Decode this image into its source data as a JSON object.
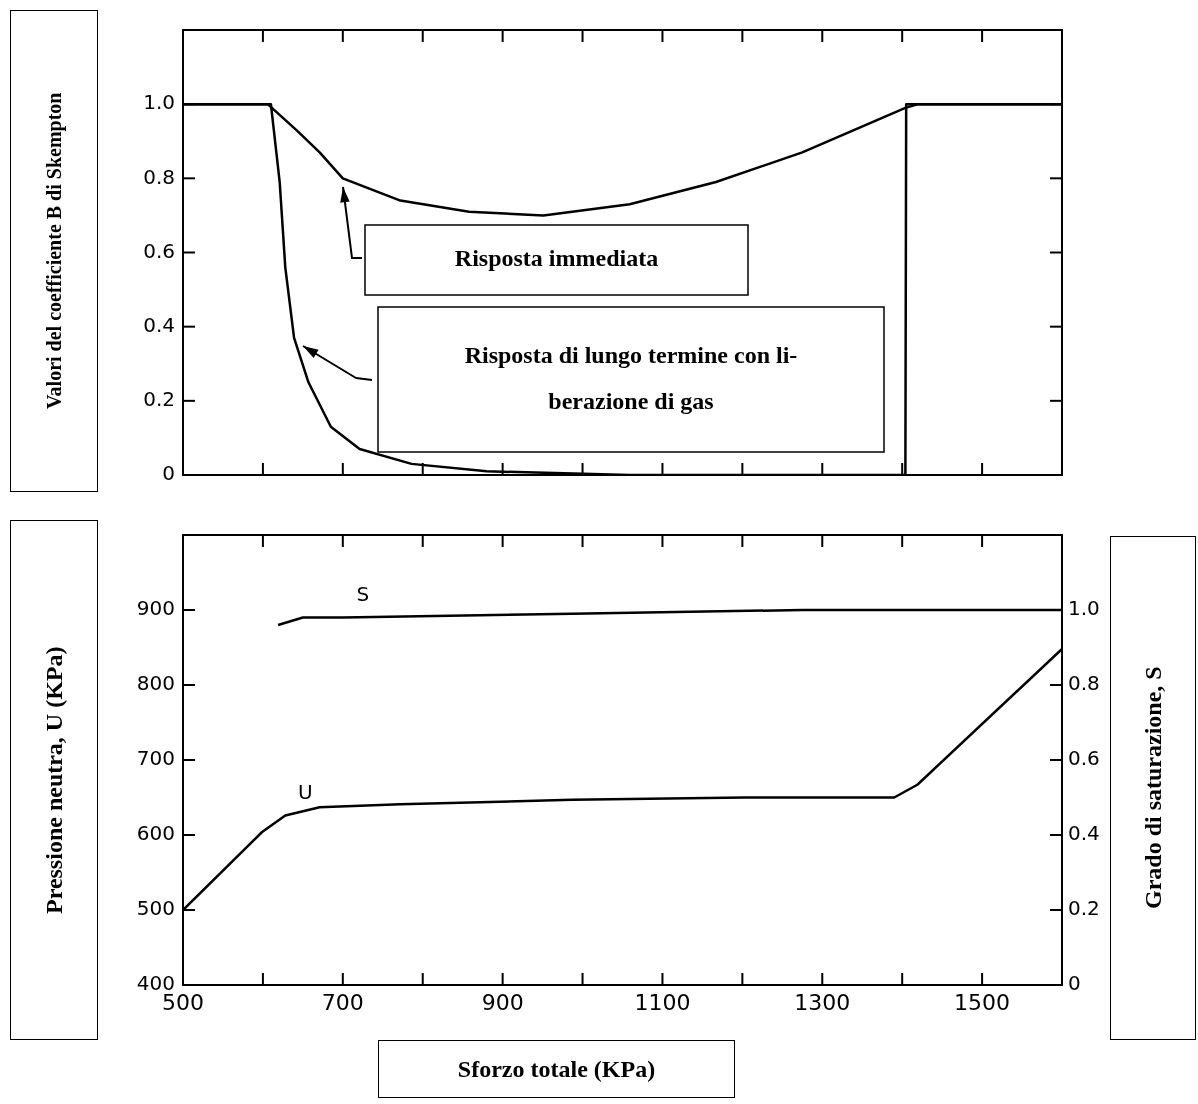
{
  "chart_data": [
    {
      "type": "line",
      "ylabel": "Valori del coefficiente B di Skempton",
      "xlim": [
        500,
        1600
      ],
      "xticks": [
        {
          "value": 500,
          "label": null
        },
        {
          "value": 600,
          "label": null
        },
        {
          "value": 700,
          "label": null
        },
        {
          "value": 800,
          "label": null
        },
        {
          "value": 900,
          "label": null
        },
        {
          "value": 1000,
          "label": null
        },
        {
          "value": 1100,
          "label": null
        },
        {
          "value": 1200,
          "label": null
        },
        {
          "value": 1300,
          "label": null
        },
        {
          "value": 1400,
          "label": null
        },
        {
          "value": 1500,
          "label": null
        },
        {
          "value": 1600,
          "label": null
        }
      ],
      "ylim": [
        0,
        1.2
      ],
      "yticks": [
        0,
        0.2,
        0.4,
        0.6,
        0.8,
        {
          "value": 1,
          "label": "1.0"
        }
      ],
      "tick_labels": "y",
      "marker": "none",
      "line_style": "solid",
      "annotations": [
        "Risposta immediata",
        "Risposta di lungo termine con li-\nberazione di gas"
      ],
      "series": [
        {
          "color": "#000000",
          "x": [
            500,
            600,
            606,
            642,
            671,
            700,
            772,
            858,
            951,
            1059,
            1167,
            1275,
            1404,
            1420,
            1600
          ],
          "values": [
            1,
            1,
            1,
            0.93,
            0.87,
            0.8,
            0.74,
            0.71,
            0.7,
            0.73,
            0.79,
            0.87,
            0.99,
            1,
            1
          ]
        },
        {
          "color": "#000000",
          "x": [
            500,
            605,
            610,
            621,
            628,
            639,
            657,
            685,
            721,
            786,
            880,
            1059,
            1404,
            1405,
            1600
          ],
          "values": [
            1,
            1,
            1,
            0.79,
            0.56,
            0.37,
            0.25,
            0.13,
            0.07,
            0.03,
            0.01,
            0,
            0,
            1,
            1
          ]
        }
      ]
    },
    {
      "type": "line",
      "ylabel": "Pressione neutra, U (KPa)",
      "y2label": "Grado di saturazione, S",
      "xlabel": "Sforzo totale (KPa)",
      "xlim": [
        500,
        1600
      ],
      "xticks": [
        500,
        {
          "value": 600,
          "label": null
        },
        700,
        {
          "value": 800,
          "label": null
        },
        900,
        {
          "value": 1000,
          "label": null
        },
        1100,
        {
          "value": 1200,
          "label": null
        },
        1300,
        {
          "value": 1400,
          "label": null
        },
        1500,
        {
          "value": 1600,
          "label": null
        }
      ],
      "ylim": [
        400,
        1000
      ],
      "yticks": [
        400,
        500,
        600,
        700,
        800,
        900
      ],
      "y2lim": [
        0,
        1.2
      ],
      "y2ticks": [
        0,
        0.2,
        0.4,
        0.6,
        0.8,
        {
          "value": 1,
          "label": "1.0"
        }
      ],
      "marker": "none",
      "line_style": "solid",
      "series": [
        {
          "name": "S",
          "axis": "y2",
          "color": "#000000",
          "x": [
            619,
            650,
            700,
            987,
            1275,
            1600
          ],
          "values": [
            0.96,
            0.98,
            0.98,
            0.99,
            1,
            1
          ]
        },
        {
          "name": "U",
          "axis": "y",
          "color": "#000000",
          "x": [
            500,
            599,
            628,
            671,
            772,
            987,
            1203,
            1390,
            1419,
            1600
          ],
          "values": [
            500,
            604,
            626,
            637,
            641,
            647,
            650,
            650,
            667,
            848
          ]
        }
      ]
    }
  ]
}
